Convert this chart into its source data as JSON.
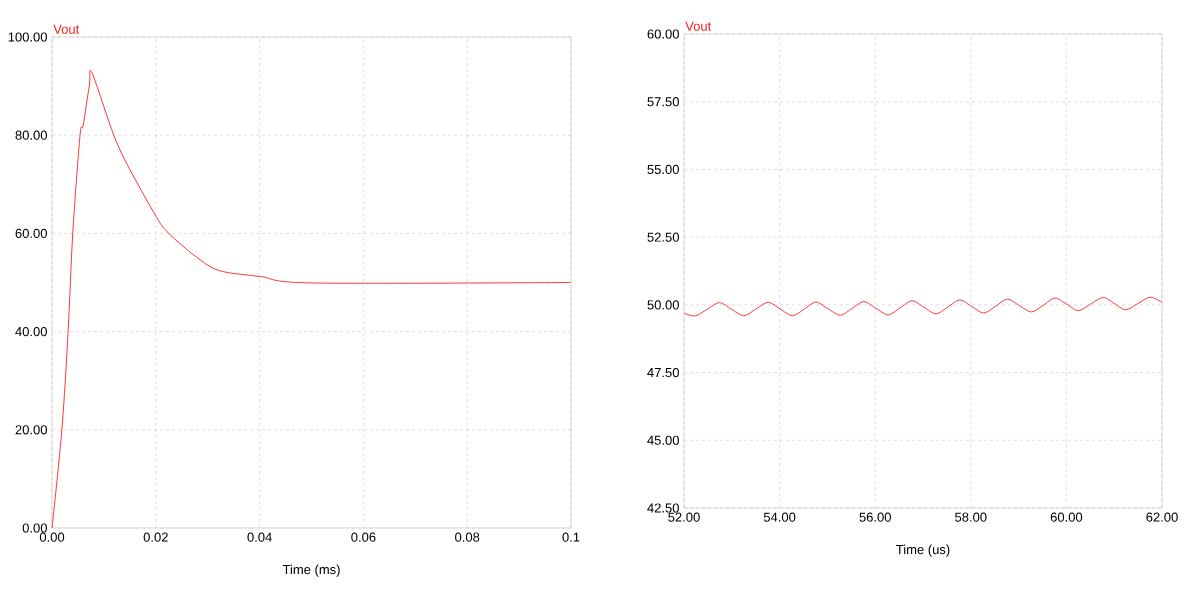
{
  "chart_data": [
    {
      "type": "line",
      "xlabel": "Time (ms)",
      "grid": true,
      "xlim": [
        0,
        0.1
      ],
      "ylim": [
        0,
        100
      ],
      "xticks": [
        {
          "value": 0,
          "label": "0.00"
        },
        {
          "value": 0.02,
          "label": "0.02"
        },
        {
          "value": 0.04,
          "label": "0.04"
        },
        {
          "value": 0.06,
          "label": "0.06"
        },
        {
          "value": 0.08,
          "label": "0.08"
        },
        0.1
      ],
      "yticks": [
        {
          "value": 0,
          "label": "0.00"
        },
        {
          "value": 20,
          "label": "20.00"
        },
        {
          "value": 40,
          "label": "40.00"
        },
        {
          "value": 60,
          "label": "60.00"
        },
        {
          "value": 80,
          "label": "80.00"
        },
        {
          "value": 100,
          "label": "100.00"
        }
      ],
      "x": [
        0,
        0.0019,
        0.0031,
        0.004,
        0.0054,
        0.006,
        0.0072,
        0.0077,
        0.0119,
        0.0149,
        0.0202,
        0.0225,
        0.0278,
        0.0323,
        0.0402,
        0.0504,
        0.1
      ],
      "series": [
        {
          "name": "Vout",
          "color": "#ff2020",
          "values": [
            0,
            20,
            40,
            60,
            80,
            82,
            90.2,
            92.7,
            80,
            73.2,
            63.2,
            60,
            55.2,
            52.4,
            51.2,
            49.9,
            50
          ]
        }
      ]
    },
    {
      "type": "line",
      "xlabel": "Time (us)",
      "grid": true,
      "xlim": [
        52,
        62
      ],
      "ylim": [
        42.5,
        60
      ],
      "xticks": [
        {
          "value": 52,
          "label": "52.00"
        },
        {
          "value": 54,
          "label": "54.00"
        },
        {
          "value": 56,
          "label": "56.00"
        },
        {
          "value": 58,
          "label": "58.00"
        },
        {
          "value": 60,
          "label": "60.00"
        },
        {
          "value": 62,
          "label": "62.00"
        }
      ],
      "yticks": [
        {
          "value": 42.5,
          "label": "42.50"
        },
        {
          "value": 45,
          "label": "45.00"
        },
        {
          "value": 47.5,
          "label": "47.50"
        },
        {
          "value": 50,
          "label": "50.00"
        },
        {
          "value": 52.5,
          "label": "52.50"
        },
        {
          "value": 55,
          "label": "55.00"
        },
        {
          "value": 57.5,
          "label": "57.50"
        },
        {
          "value": 60,
          "label": "60.00"
        }
      ],
      "x": [
        52.0,
        52.23,
        52.48,
        52.74,
        52.99,
        53.25,
        53.5,
        53.76,
        54.01,
        54.27,
        54.52,
        54.76,
        55.01,
        55.27,
        55.52,
        55.76,
        56.01,
        56.27,
        56.52,
        56.77,
        57.02,
        57.27,
        57.52,
        57.77,
        58.02,
        58.27,
        58.52,
        58.77,
        59.02,
        59.27,
        59.52,
        59.76,
        60.01,
        60.25,
        60.51,
        60.77,
        61.0,
        61.24,
        61.5,
        61.75,
        62.0
      ],
      "series": [
        {
          "name": "Vout",
          "color": "#ff2020",
          "values": [
            49.7,
            49.59,
            49.83,
            50.08,
            49.84,
            49.6,
            49.84,
            50.09,
            49.85,
            49.6,
            49.85,
            50.1,
            49.86,
            49.62,
            49.87,
            50.12,
            49.88,
            49.63,
            49.89,
            50.15,
            49.91,
            49.67,
            49.92,
            50.18,
            49.94,
            49.7,
            49.95,
            50.21,
            49.97,
            49.74,
            49.99,
            50.25,
            50.02,
            49.79,
            50.03,
            50.27,
            50.05,
            49.82,
            50.05,
            50.28,
            50.1
          ]
        }
      ]
    }
  ]
}
